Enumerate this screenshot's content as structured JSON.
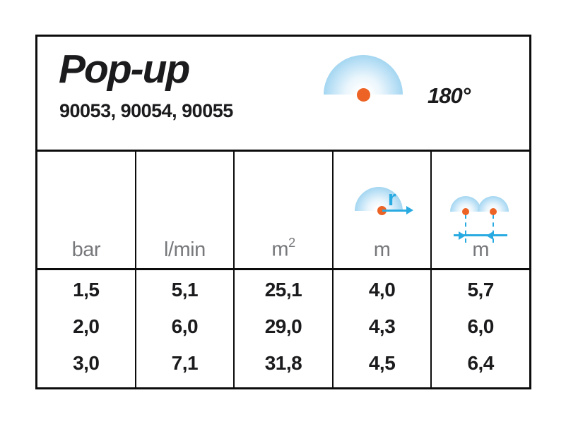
{
  "header": {
    "title": "Pop-up",
    "models": "90053, 90054, 90055",
    "spray_angle": "180°"
  },
  "icons": {
    "spray_pattern": "semicircle-180-spray-icon",
    "radius": "radius-arrow-icon",
    "spacing": "spacing-dimension-icon"
  },
  "table": {
    "columns": [
      {
        "name": "pressure",
        "unit": "bar"
      },
      {
        "name": "flow",
        "unit": "l/min"
      },
      {
        "name": "coverage-area",
        "unit": "m",
        "unit_sup": "2"
      },
      {
        "name": "radius",
        "unit": "m",
        "icon_label": "r"
      },
      {
        "name": "spacing",
        "unit": "m"
      }
    ],
    "rows": [
      [
        "1,5",
        "5,1",
        "25,1",
        "4,0",
        "5,7"
      ],
      [
        "2,0",
        "6,0",
        "29,0",
        "4,3",
        "6,0"
      ],
      [
        "3,0",
        "7,1",
        "31,8",
        "4,5",
        "6,4"
      ]
    ]
  },
  "colors": {
    "accent_blue": "#29abe2",
    "spray_fill_blue": "#a4d6f1",
    "nozzle_orange": "#ec6325",
    "unit_gray": "#77787b",
    "text_black": "#1b1b1d",
    "line_black": "#0c0c0c"
  }
}
